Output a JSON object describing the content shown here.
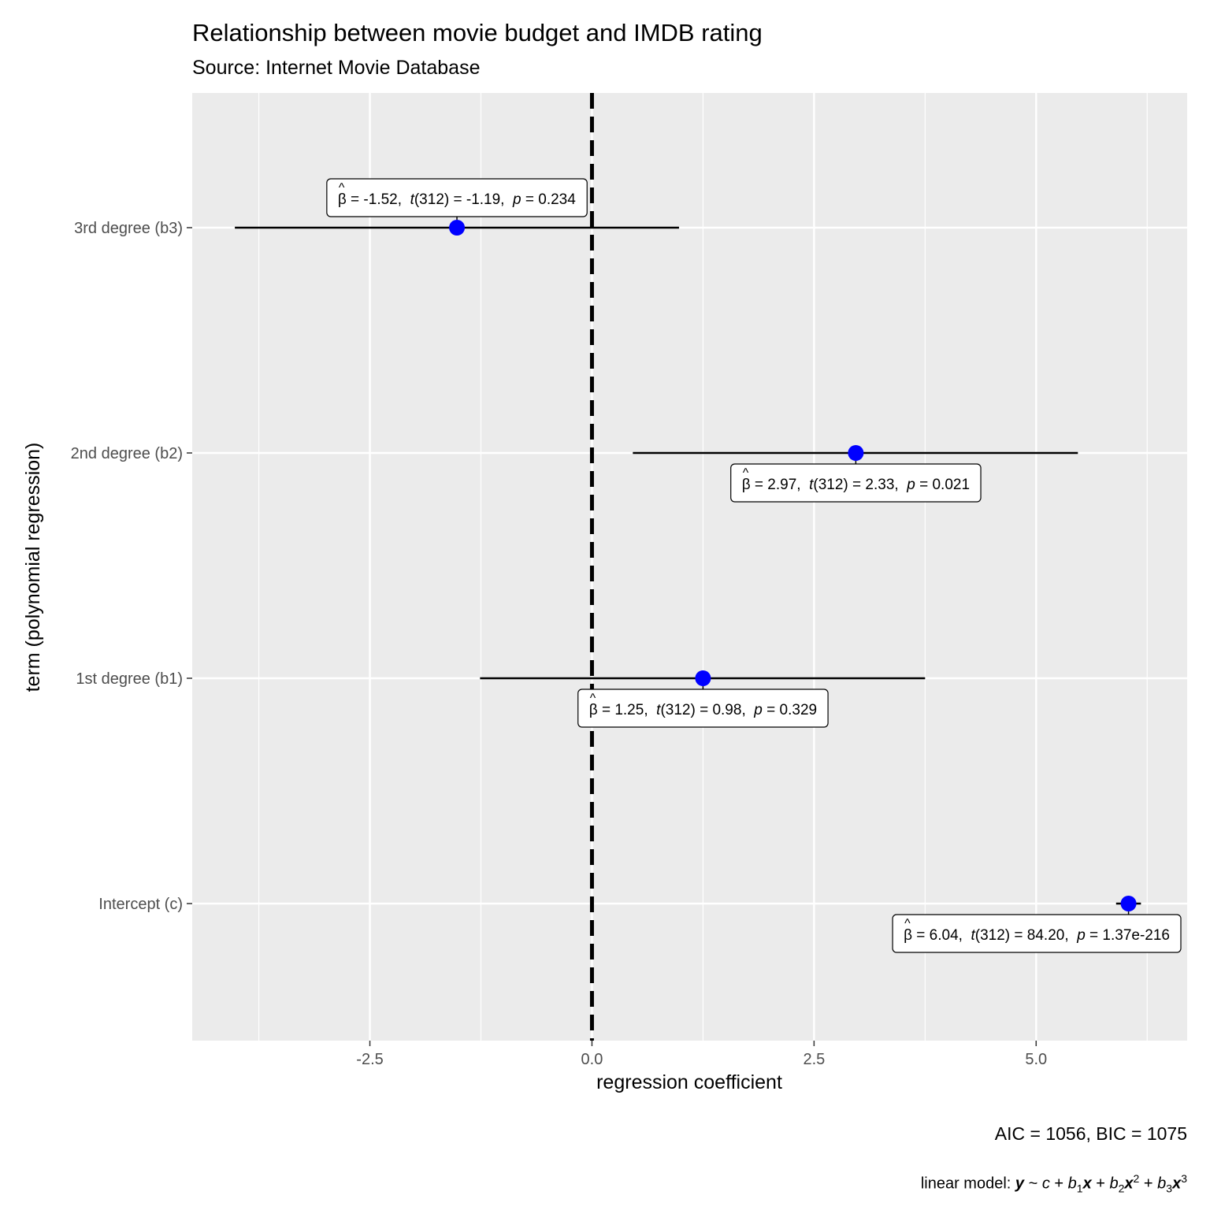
{
  "chart_data": {
    "type": "scatter",
    "title": "Relationship between movie budget and IMDB rating",
    "subtitle": "Source: Internet Movie Database",
    "xlabel": "regression coefficient",
    "ylabel": "term (polynomial regression)",
    "xlim": [
      -4.5,
      6.7
    ],
    "x_ticks": [
      {
        "value": -2.5,
        "label": "-2.5"
      },
      {
        "value": 0.0,
        "label": "0.0"
      },
      {
        "value": 2.5,
        "label": "2.5"
      },
      {
        "value": 5.0,
        "label": "5.0"
      }
    ],
    "reference_line": {
      "x": 0,
      "style": "dashed"
    },
    "point_color": "#0000ff",
    "grid": true,
    "terms": [
      {
        "term": "3rd degree (b3)",
        "estimate": -1.52,
        "conf_low": -4.02,
        "conf_high": 0.98,
        "beta_text": "= -1.52,",
        "t_df": "(312)",
        "t_text": "= -1.19,",
        "p_text": "= 0.234"
      },
      {
        "term": "2nd degree (b2)",
        "estimate": 2.97,
        "conf_low": 0.46,
        "conf_high": 5.47,
        "beta_text": "= 2.97,",
        "t_df": "(312)",
        "t_text": "= 2.33,",
        "p_text": "= 0.021"
      },
      {
        "term": "1st degree (b1)",
        "estimate": 1.25,
        "conf_low": -1.26,
        "conf_high": 3.75,
        "beta_text": "= 1.25,",
        "t_df": "(312)",
        "t_text": "= 0.98,",
        "p_text": "= 0.329"
      },
      {
        "term": "Intercept (c)",
        "estimate": 6.04,
        "conf_low": 5.9,
        "conf_high": 6.18,
        "beta_text": "= 6.04,",
        "t_df": "(312)",
        "t_text": "= 84.20,",
        "p_text": "= 1.37e-216"
      }
    ]
  },
  "caption": {
    "stats": "AIC = 1056, BIC = 1075",
    "model_prefix": "linear model:",
    "model_formula": [
      "y",
      "~",
      "c",
      "+",
      "b",
      "1",
      "x",
      "+",
      "b",
      "2",
      "x",
      "2",
      "+",
      "b",
      "3",
      "x",
      "3"
    ]
  },
  "symbols": {
    "beta": "β",
    "hat": "^",
    "t": "t",
    "p": "p"
  }
}
